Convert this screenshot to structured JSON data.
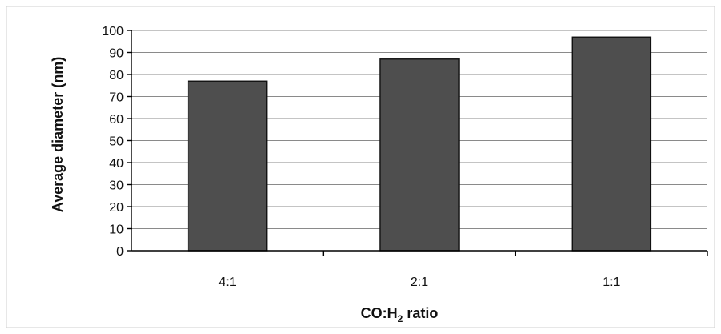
{
  "chart_data": {
    "type": "bar",
    "title": "",
    "categories": [
      "4:1",
      "2:1",
      "1:1"
    ],
    "values": [
      77,
      87,
      97
    ],
    "xlabel": "CO:H",
    "xlabel_subscript": "2",
    "xlabel_suffix": " ratio",
    "ylabel": "Average diameter (nm)",
    "ylim": [
      0,
      100
    ],
    "yticks": [
      0,
      10,
      20,
      30,
      40,
      50,
      60,
      70,
      80,
      90,
      100
    ],
    "ytick_labels": [
      "0",
      "10",
      "20",
      "30",
      "40",
      "50",
      "60",
      "70",
      "80",
      "90",
      "100"
    ],
    "grid": true,
    "legend": "none",
    "bar_color": "#4e4e4e"
  }
}
